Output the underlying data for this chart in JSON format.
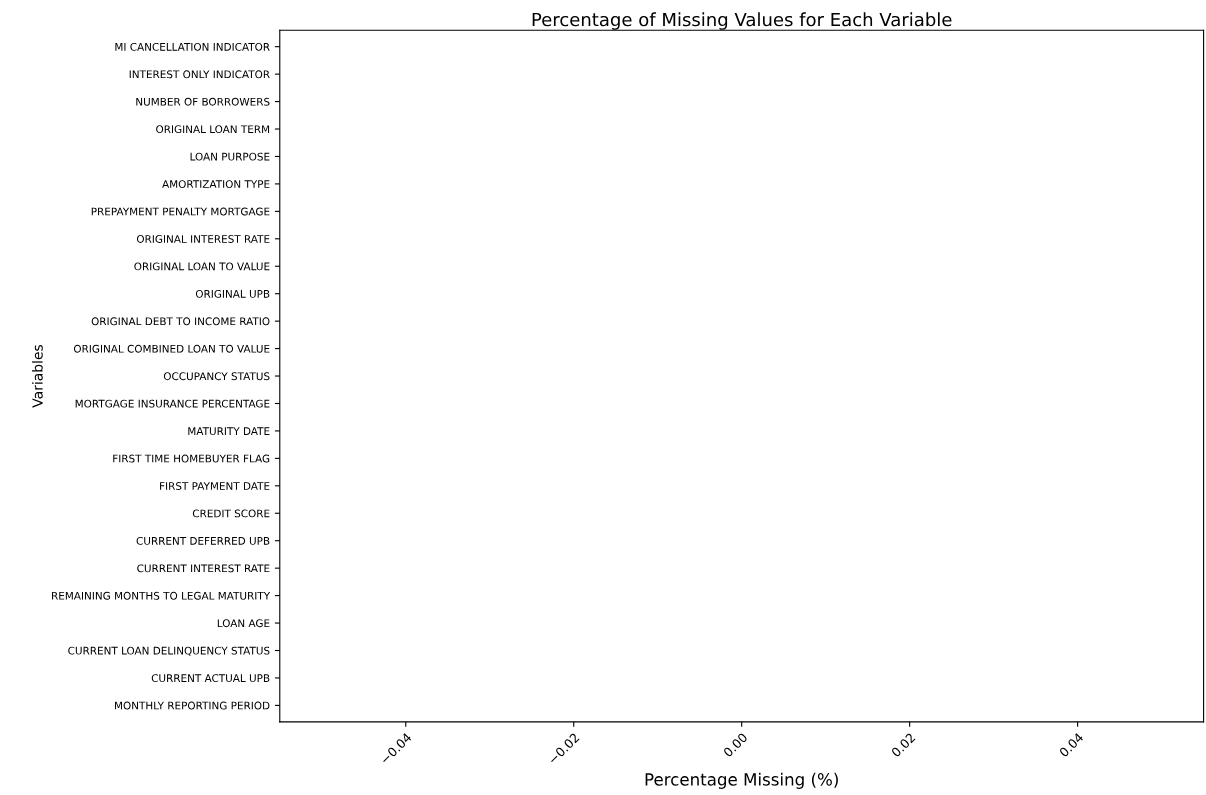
{
  "chart_data": {
    "type": "bar",
    "orientation": "horizontal",
    "title": "Percentage of Missing Values for Each Variable",
    "xlabel": "Percentage Missing (%)",
    "ylabel": "Variables",
    "categories": [
      "MI CANCELLATION INDICATOR",
      "INTEREST ONLY INDICATOR",
      "NUMBER OF BORROWERS",
      "ORIGINAL LOAN TERM",
      "LOAN PURPOSE",
      "AMORTIZATION TYPE",
      "PREPAYMENT PENALTY MORTGAGE",
      "ORIGINAL INTEREST RATE",
      "ORIGINAL LOAN TO VALUE",
      "ORIGINAL UPB",
      "ORIGINAL DEBT TO INCOME RATIO",
      "ORIGINAL COMBINED LOAN TO VALUE",
      "OCCUPANCY STATUS",
      "MORTGAGE INSURANCE PERCENTAGE",
      "MATURITY DATE",
      "FIRST TIME HOMEBUYER FLAG",
      "FIRST PAYMENT DATE",
      "CREDIT SCORE",
      "CURRENT DEFERRED UPB",
      "CURRENT INTEREST RATE",
      "REMAINING MONTHS TO LEGAL MATURITY",
      "LOAN AGE",
      "CURRENT LOAN DELINQUENCY STATUS",
      "CURRENT ACTUAL UPB",
      "MONTHLY REPORTING PERIOD"
    ],
    "values": [
      0,
      0,
      0,
      0,
      0,
      0,
      0,
      0,
      0,
      0,
      0,
      0,
      0,
      0,
      0,
      0,
      0,
      0,
      0,
      0,
      0,
      0,
      0,
      0,
      0
    ],
    "xlim": [
      -0.055,
      0.055
    ],
    "xticks": [
      {
        "value": -0.04,
        "label": "−0.04"
      },
      {
        "value": -0.02,
        "label": "−0.02"
      },
      {
        "value": 0,
        "label": "0.00"
      },
      {
        "value": 0.02,
        "label": "0.02"
      },
      0.04
    ],
    "grid": false,
    "legend": false
  }
}
